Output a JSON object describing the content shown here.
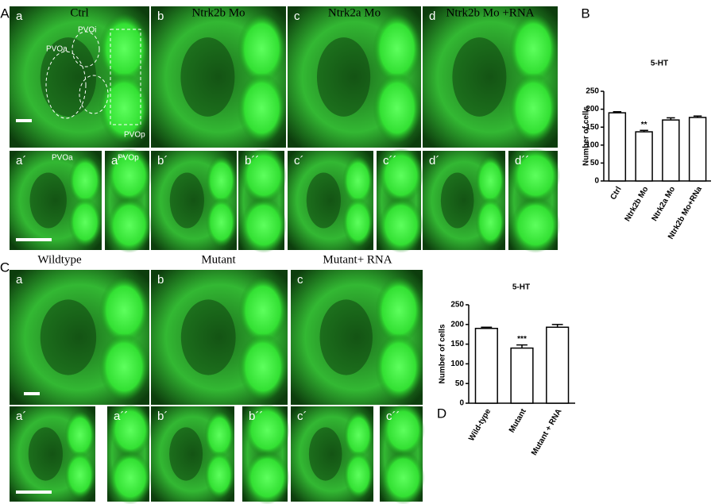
{
  "figure": {
    "panel_letters": [
      "A",
      "B",
      "C",
      "D"
    ],
    "column_titles_A": [
      "Ctrl",
      "Ntrk2b Mo",
      "Ntrk2a Mo",
      "Ntrk2b Mo +RNA"
    ],
    "column_titles_C": [
      "Wildtype",
      "Mutant",
      "Mutant+ RNA"
    ],
    "image_labels_A": [
      "a",
      "b",
      "c",
      "d",
      "a´",
      "a´´",
      "b´",
      "b´´",
      "c´",
      "c´´",
      "d´",
      "d´´"
    ],
    "image_labels_C": [
      "a",
      "b",
      "c",
      "a´",
      "a´´",
      "b´",
      "b´´",
      "c´",
      "c´´"
    ],
    "region_labels": [
      "PVOa",
      "PVOi",
      "PVOp",
      "PVOa",
      "PVOp"
    ]
  },
  "chart_data": [
    {
      "type": "bar",
      "title": "5-HT",
      "y_label": "Number of cells",
      "categories": [
        "Ctrl",
        "Ntrk2b Mo",
        "Ntrk2a Mo",
        "Ntrk2b Mo+RNa"
      ],
      "values": [
        190,
        137,
        170,
        177
      ],
      "errors": [
        3,
        4,
        6,
        4
      ],
      "significance": [
        null,
        "**",
        null,
        null
      ],
      "color": "#ffffff",
      "edge_color": "#000000",
      "ylim": [
        0,
        250
      ],
      "yticks": [
        0,
        50,
        100,
        150,
        200,
        250
      ],
      "grid": false
    },
    {
      "type": "bar",
      "title": "5-HT",
      "y_label": "Number of cells",
      "categories": [
        "Wild-type",
        "Mutant",
        "Mutant + RNA"
      ],
      "values": [
        190,
        140,
        193
      ],
      "errors": [
        3,
        8,
        7
      ],
      "significance": [
        null,
        "***",
        null
      ],
      "color": "#ffffff",
      "edge_color": "#000000",
      "ylim": [
        0,
        250
      ],
      "yticks": [
        0,
        50,
        100,
        150,
        200,
        250
      ],
      "grid": false
    }
  ]
}
